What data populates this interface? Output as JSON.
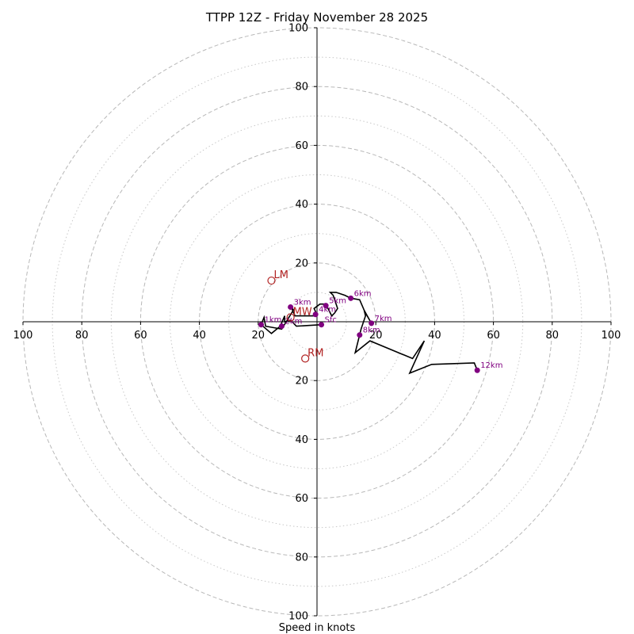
{
  "chart_data": {
    "type": "hodograph",
    "title": "TTPP 12Z - Friday November 28 2025",
    "xlabel": "Speed in knots",
    "max_speed": 100,
    "ring_major": [
      20,
      40,
      60,
      80,
      100
    ],
    "ring_minor": [
      10,
      30,
      50,
      70,
      90
    ],
    "grid": true,
    "x_ticks": [
      {
        "value": -100,
        "label": "100"
      },
      {
        "value": -80,
        "label": "80"
      },
      {
        "value": -60,
        "label": "60"
      },
      {
        "value": -40,
        "label": "40"
      },
      {
        "value": -20,
        "label": "20"
      },
      {
        "value": 20,
        "label": "20"
      },
      {
        "value": 40,
        "label": "40"
      },
      {
        "value": 60,
        "label": "60"
      },
      {
        "value": 80,
        "label": "80"
      },
      {
        "value": 100,
        "label": "100"
      }
    ],
    "y_ticks": [
      {
        "value": 100,
        "label": "100"
      },
      {
        "value": 80,
        "label": "80"
      },
      {
        "value": 60,
        "label": "60"
      },
      {
        "value": 40,
        "label": "40"
      },
      {
        "value": 20,
        "label": "20"
      },
      {
        "value": -20,
        "label": "20"
      },
      {
        "value": -40,
        "label": "40"
      },
      {
        "value": -60,
        "label": "60"
      },
      {
        "value": -80,
        "label": "80"
      },
      {
        "value": -100,
        "label": "100"
      }
    ],
    "trace": [
      [
        1.5,
        -1.0
      ],
      [
        -7.0,
        -1.5
      ],
      [
        -9.0,
        0.5
      ],
      [
        -11.0,
        0.0
      ],
      [
        -11.0,
        2.0
      ],
      [
        -12.5,
        -1.5
      ],
      [
        -15.5,
        -4.0
      ],
      [
        -19.0,
        -1.0
      ],
      [
        -18.0,
        1.5
      ],
      [
        -17.5,
        -1.5
      ],
      [
        -12.0,
        -2.5
      ],
      [
        -8.0,
        4.0
      ],
      [
        -9.0,
        5.5
      ],
      [
        -7.5,
        2.0
      ],
      [
        -4.0,
        2.0
      ],
      [
        -1.0,
        2.0
      ],
      [
        -0.5,
        3.5
      ],
      [
        -1.0,
        4.5
      ],
      [
        1.0,
        6.0
      ],
      [
        3.0,
        6.0
      ],
      [
        5.0,
        2.0
      ],
      [
        6.0,
        3.0
      ],
      [
        7.0,
        4.5
      ],
      [
        5.5,
        9.0
      ],
      [
        4.5,
        10.0
      ],
      [
        6.5,
        10.0
      ],
      [
        9.5,
        9.0
      ],
      [
        11.5,
        8.0
      ],
      [
        14.5,
        7.5
      ],
      [
        16.0,
        4.0
      ],
      [
        16.5,
        3.0
      ],
      [
        18.5,
        -0.5
      ],
      [
        16.0,
        4.0
      ],
      [
        16.5,
        2.0
      ],
      [
        15.0,
        -2.5
      ],
      [
        13.0,
        -10.5
      ],
      [
        18.0,
        -6.5
      ],
      [
        32.5,
        -12.5
      ],
      [
        36.5,
        -6.5
      ],
      [
        31.5,
        -17.5
      ],
      [
        39.0,
        -14.5
      ],
      [
        53.5,
        -14.0
      ],
      [
        54.5,
        -16.5
      ]
    ],
    "height_points": [
      {
        "label": "Sfc",
        "u": 1.5,
        "v": -1.0
      },
      {
        "label": "1km",
        "u": -19.0,
        "v": -1.0
      },
      {
        "label": "2km",
        "u": -12.0,
        "v": -1.5
      },
      {
        "label": "3km",
        "u": -9.0,
        "v": 5.0
      },
      {
        "label": "4km",
        "u": -0.5,
        "v": 2.5
      },
      {
        "label": "5km",
        "u": 3.0,
        "v": 5.5
      },
      {
        "label": "6km",
        "u": 11.5,
        "v": 8.0
      },
      {
        "label": "7km",
        "u": 18.5,
        "v": -0.5
      },
      {
        "label": "8km",
        "u": 14.5,
        "v": -4.5
      },
      {
        "label": "12km",
        "u": 54.5,
        "v": -16.5
      }
    ],
    "motion_markers": [
      {
        "label": "LM",
        "u": -15.5,
        "v": 14.0
      },
      {
        "label": "MW",
        "u": -9.0,
        "v": 1.5
      },
      {
        "label": "RM",
        "u": -4.0,
        "v": -12.5
      }
    ]
  }
}
